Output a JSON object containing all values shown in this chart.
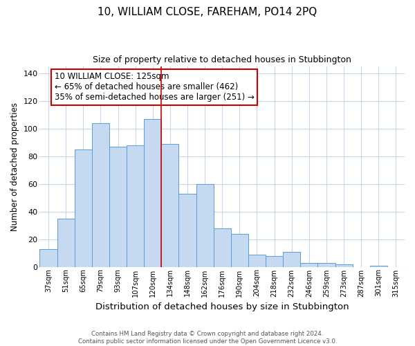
{
  "title": "10, WILLIAM CLOSE, FAREHAM, PO14 2PQ",
  "subtitle": "Size of property relative to detached houses in Stubbington",
  "xlabel": "Distribution of detached houses by size in Stubbington",
  "ylabel": "Number of detached properties",
  "bar_labels": [
    "37sqm",
    "51sqm",
    "65sqm",
    "79sqm",
    "93sqm",
    "107sqm",
    "120sqm",
    "134sqm",
    "148sqm",
    "162sqm",
    "176sqm",
    "190sqm",
    "204sqm",
    "218sqm",
    "232sqm",
    "246sqm",
    "259sqm",
    "273sqm",
    "287sqm",
    "301sqm",
    "315sqm"
  ],
  "bar_heights": [
    13,
    35,
    85,
    104,
    87,
    88,
    107,
    89,
    53,
    60,
    28,
    24,
    9,
    8,
    11,
    3,
    3,
    2,
    0,
    1,
    0
  ],
  "bar_color": "#c5d9f1",
  "bar_edge_color": "#5b9bd5",
  "vline_x": 6.5,
  "vline_color": "#cc0000",
  "ylim": [
    0,
    145
  ],
  "yticks": [
    0,
    20,
    40,
    60,
    80,
    100,
    120,
    140
  ],
  "annotation_title": "10 WILLIAM CLOSE: 125sqm",
  "annotation_line1": "← 65% of detached houses are smaller (462)",
  "annotation_line2": "35% of semi-detached houses are larger (251) →",
  "annotation_box_color": "#ffffff",
  "annotation_box_edge": "#cc0000",
  "footer1": "Contains HM Land Registry data © Crown copyright and database right 2024.",
  "footer2": "Contains public sector information licensed under the Open Government Licence v3.0.",
  "bg_color": "#ffffff",
  "grid_color": "#c8d8ea"
}
